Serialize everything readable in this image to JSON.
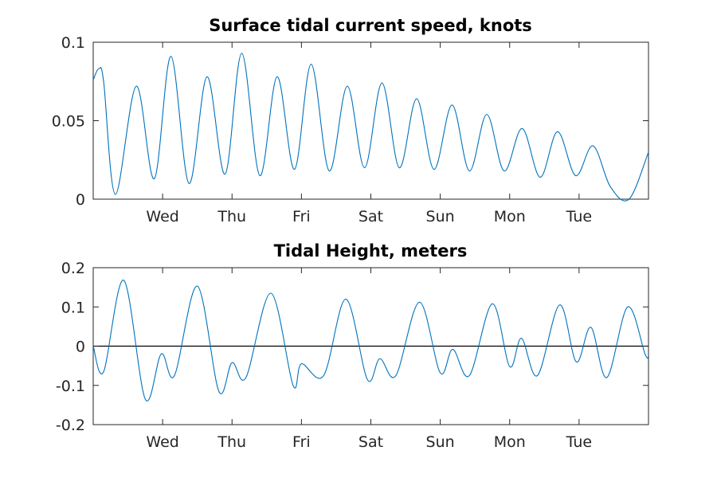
{
  "chart_data": [
    {
      "type": "line",
      "title": "Surface tidal current speed, knots",
      "xlabel": "",
      "ylabel": "",
      "xlim": [
        0,
        8
      ],
      "ylim": [
        0,
        0.1
      ],
      "yticks": [
        0,
        0.05,
        0.1
      ],
      "ytick_labels": [
        "0",
        "0.05",
        "0.1"
      ],
      "xticks": [
        1,
        2,
        3,
        4,
        5,
        6,
        7
      ],
      "xtick_labels": [
        "Wed",
        "Thu",
        "Fri",
        "Sat",
        "Sun",
        "Mon",
        "Tue"
      ],
      "grid": false,
      "series": [
        {
          "color": "#0072BD",
          "x": [
            0,
            0.08,
            0.15,
            0.32,
            0.62,
            0.88,
            1.12,
            1.38,
            1.64,
            1.9,
            2.14,
            2.4,
            2.65,
            2.9,
            3.14,
            3.4,
            3.66,
            3.91,
            4.16,
            4.41,
            4.66,
            4.91,
            5.17,
            5.42,
            5.67,
            5.92,
            6.18,
            6.44,
            6.69,
            6.95,
            7.2,
            7.45,
            7.72,
            8.0
          ],
          "y": [
            0.076,
            0.083,
            0.075,
            0.003,
            0.072,
            0.013,
            0.091,
            0.01,
            0.078,
            0.016,
            0.093,
            0.015,
            0.078,
            0.019,
            0.086,
            0.018,
            0.072,
            0.02,
            0.074,
            0.02,
            0.064,
            0.019,
            0.06,
            0.018,
            0.054,
            0.018,
            0.045,
            0.014,
            0.043,
            0.015,
            0.034,
            0.008,
            0.0,
            0.03
          ]
        }
      ]
    },
    {
      "type": "line",
      "title": "Tidal Height, meters",
      "xlabel": "",
      "ylabel": "",
      "xlim": [
        0,
        8
      ],
      "ylim": [
        -0.2,
        0.2
      ],
      "yticks": [
        -0.2,
        -0.1,
        0,
        0.1,
        0.2
      ],
      "ytick_labels": [
        "-0.2",
        "-0.1",
        "0",
        "0.1",
        "0.2"
      ],
      "xticks": [
        1,
        2,
        3,
        4,
        5,
        6,
        7
      ],
      "xtick_labels": [
        "Wed",
        "Thu",
        "Fri",
        "Sat",
        "Sun",
        "Mon",
        "Tue"
      ],
      "grid": false,
      "zero_line": true,
      "series": [
        {
          "color": "#0072BD",
          "x": [
            0,
            0.15,
            0.44,
            0.75,
            0.98,
            1.17,
            1.5,
            1.81,
            2.0,
            2.2,
            2.56,
            2.88,
            3.0,
            3.32,
            3.64,
            3.95,
            4.13,
            4.36,
            4.7,
            5.0,
            5.18,
            5.42,
            5.75,
            6.0,
            6.17,
            6.4,
            6.72,
            6.96,
            7.17,
            7.4,
            7.7,
            7.95,
            8.0
          ],
          "y": [
            0.0,
            -0.065,
            0.168,
            -0.135,
            -0.02,
            -0.075,
            0.153,
            -0.115,
            -0.042,
            -0.08,
            0.135,
            -0.1,
            -0.045,
            -0.075,
            0.12,
            -0.085,
            -0.032,
            -0.075,
            0.112,
            -0.068,
            -0.008,
            -0.075,
            0.108,
            -0.052,
            0.02,
            -0.075,
            0.105,
            -0.04,
            0.048,
            -0.08,
            0.1,
            -0.02,
            -0.025
          ]
        }
      ]
    }
  ]
}
